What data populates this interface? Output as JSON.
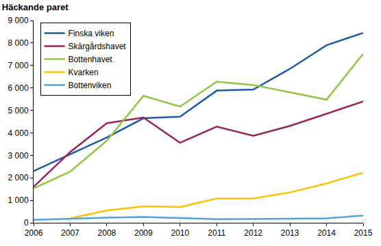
{
  "chart_data": {
    "type": "line",
    "title": "Häckande paret",
    "x": [
      2006,
      2007,
      2008,
      2009,
      2010,
      2011,
      2012,
      2013,
      2014,
      2015
    ],
    "series": [
      {
        "name": "Finska viken",
        "color": "#1f5aa6",
        "values": [
          2300,
          3050,
          3800,
          4650,
          4720,
          5880,
          5930,
          6850,
          7900,
          8450
        ]
      },
      {
        "name": "Skärgårdshavet",
        "color": "#9b2258",
        "values": [
          1600,
          3150,
          4430,
          4680,
          3560,
          4280,
          3870,
          4310,
          4850,
          5400
        ]
      },
      {
        "name": "Bottenhavet",
        "color": "#8dc63f",
        "values": [
          1530,
          2280,
          3650,
          5650,
          5170,
          6280,
          6130,
          5810,
          5480,
          7520
        ]
      },
      {
        "name": "Kvarken",
        "color": "#ffc000",
        "values": [
          null,
          200,
          550,
          730,
          700,
          1080,
          1080,
          1350,
          1750,
          2230
        ]
      },
      {
        "name": "Bottenviken",
        "color": "#4fa3e0",
        "values": [
          130,
          190,
          230,
          260,
          200,
          160,
          170,
          190,
          200,
          320
        ]
      }
    ],
    "xlim": [
      2006,
      2015
    ],
    "xticks": [
      2006,
      2007,
      2008,
      2009,
      2010,
      2011,
      2012,
      2013,
      2014,
      2015
    ],
    "ylim": [
      0,
      9000
    ],
    "yticks": [
      0,
      {
        "value": 1000,
        "label": "1 000"
      },
      {
        "value": 2000,
        "label": "2 000"
      },
      {
        "value": 3000,
        "label": "3 000"
      },
      {
        "value": 4000,
        "label": "4 000"
      },
      {
        "value": 5000,
        "label": "5 000"
      },
      {
        "value": 6000,
        "label": "6 000"
      },
      {
        "value": 7000,
        "label": "7 000"
      },
      {
        "value": 8000,
        "label": "8 000"
      },
      {
        "value": 9000,
        "label": "9 000"
      }
    ],
    "grid": false,
    "legend": "upper left"
  }
}
